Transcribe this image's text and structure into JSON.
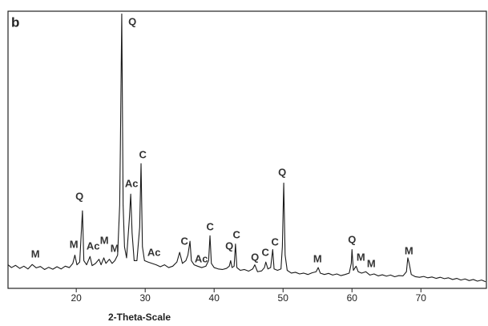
{
  "chart_data": {
    "type": "line",
    "panel_label": "b",
    "xlabel": "2-Theta-Scale",
    "color": "#1a1a1a",
    "xlim": [
      10.1,
      79.5
    ],
    "ylim": [
      0,
      100
    ],
    "xticks": [
      20,
      30,
      40,
      50,
      60,
      70
    ],
    "x": [
      10.1,
      10.6,
      11.2,
      11.8,
      12.4,
      13.0,
      13.6,
      14.2,
      14.8,
      15.4,
      16.0,
      16.6,
      17.2,
      17.8,
      18.4,
      19.0,
      19.5,
      19.8,
      20.1,
      20.5,
      20.9,
      21.1,
      21.5,
      22.0,
      22.3,
      22.8,
      23.3,
      23.6,
      24.0,
      24.3,
      24.8,
      25.2,
      25.6,
      26.0,
      26.3,
      26.4,
      26.6,
      26.8,
      27.0,
      27.3,
      27.7,
      27.9,
      28.1,
      28.4,
      28.8,
      29.2,
      29.4,
      29.6,
      29.9,
      30.4,
      31.0,
      31.6,
      32.2,
      32.8,
      33.4,
      34.0,
      34.6,
      35.0,
      35.4,
      35.9,
      36.2,
      36.5,
      36.7,
      37.1,
      37.6,
      38.2,
      38.8,
      39.2,
      39.4,
      39.6,
      40.0,
      40.6,
      41.2,
      41.8,
      42.2,
      42.4,
      42.6,
      42.9,
      43.1,
      43.3,
      43.8,
      44.4,
      45.0,
      45.6,
      45.9,
      46.3,
      46.9,
      47.3,
      47.5,
      47.8,
      48.2,
      48.5,
      48.7,
      49.2,
      49.7,
      49.9,
      50.1,
      50.3,
      50.6,
      51.2,
      51.8,
      52.4,
      53.0,
      53.6,
      54.2,
      54.8,
      55.1,
      55.4,
      56.0,
      56.6,
      57.2,
      57.8,
      58.4,
      59.0,
      59.6,
      59.9,
      60.0,
      60.2,
      60.6,
      60.9,
      61.4,
      62.0,
      62.6,
      63.2,
      63.8,
      64.4,
      65.0,
      65.6,
      66.2,
      66.8,
      67.4,
      67.9,
      68.1,
      68.3,
      68.6,
      69.2,
      69.8,
      70.4,
      71.0,
      71.6,
      72.2,
      72.8,
      73.4,
      74.0,
      74.6,
      75.2,
      75.8,
      76.4,
      77.0,
      77.6,
      78.2,
      78.8,
      79.4
    ],
    "values": [
      8.5,
      7.5,
      8.3,
      7.2,
      8.0,
      7.0,
      8.6,
      7.4,
      7.9,
      6.8,
      7.6,
      6.9,
      7.8,
      7.0,
      8.0,
      7.5,
      9.0,
      12.0,
      8.5,
      9.5,
      28,
      10,
      8.5,
      11.5,
      8.2,
      9.0,
      10.5,
      8.5,
      11.0,
      9.0,
      10.5,
      9.0,
      10.0,
      12.0,
      30,
      51,
      99,
      30,
      15,
      11,
      25,
      34,
      20,
      10,
      10,
      22,
      45,
      15,
      10,
      9.5,
      9.0,
      8.5,
      7.8,
      8.5,
      7.5,
      8.0,
      9.5,
      13,
      9,
      10,
      12,
      17,
      10,
      8.5,
      8,
      7.5,
      8,
      10,
      19,
      9,
      7.5,
      7,
      6.8,
      7.2,
      8,
      10,
      7.5,
      8,
      16,
      7.5,
      6.5,
      6.8,
      6.2,
      7.0,
      8.5,
      6.0,
      6.3,
      7.5,
      9.5,
      7,
      7.5,
      14,
      7,
      6.5,
      7,
      15,
      38,
      12,
      6.5,
      5.5,
      5.8,
      5.2,
      5.5,
      5.0,
      5.6,
      6.0,
      7.5,
      5.5,
      5.0,
      5.4,
      4.8,
      5.2,
      4.6,
      5.0,
      5.5,
      9,
      14,
      6.5,
      8,
      6,
      5.5,
      6,
      4.8,
      5.2,
      4.5,
      4.9,
      4.4,
      4.8,
      4.2,
      4.6,
      4.5,
      6,
      11,
      9,
      5,
      4.2,
      4.0,
      4.3,
      3.8,
      4.1,
      3.6,
      4.0,
      3.5,
      3.8,
      3.2,
      3.6,
      3.0,
      3.4,
      2.8,
      3.2,
      2.6,
      3.0,
      2.4
    ],
    "annotations": [
      {
        "text": "M",
        "x": 14.07,
        "y": 12.1
      },
      {
        "text": "Q",
        "x": 20.47,
        "y": 32.9
      },
      {
        "text": "M",
        "x": 19.65,
        "y": 15.6
      },
      {
        "text": "Ac",
        "x": 22.44,
        "y": 15.0
      },
      {
        "text": "M",
        "x": 24.07,
        "y": 17.1
      },
      {
        "text": "M",
        "x": 25.58,
        "y": 14.2
      },
      {
        "text": "Ac",
        "x": 28.02,
        "y": 37.6
      },
      {
        "text": "C",
        "x": 29.65,
        "y": 48.0
      },
      {
        "text": "Q",
        "x": 28.14,
        "y": 96.0
      },
      {
        "text": "Ac",
        "x": 31.28,
        "y": 12.7
      },
      {
        "text": "C",
        "x": 35.7,
        "y": 16.8
      },
      {
        "text": "Ac",
        "x": 38.14,
        "y": 10.4
      },
      {
        "text": "C",
        "x": 39.42,
        "y": 22.0
      },
      {
        "text": "Q",
        "x": 42.2,
        "y": 15.0
      },
      {
        "text": "C",
        "x": 43.26,
        "y": 19.1
      },
      {
        "text": "Q",
        "x": 45.93,
        "y": 11.0
      },
      {
        "text": "C",
        "x": 47.44,
        "y": 12.7
      },
      {
        "text": "C",
        "x": 48.84,
        "y": 16.5
      },
      {
        "text": "Q",
        "x": 49.88,
        "y": 41.6
      },
      {
        "text": "M",
        "x": 55.0,
        "y": 10.4
      },
      {
        "text": "Q",
        "x": 60.0,
        "y": 17.3
      },
      {
        "text": "M",
        "x": 61.28,
        "y": 11.0
      },
      {
        "text": "M",
        "x": 62.79,
        "y": 8.7
      },
      {
        "text": "M",
        "x": 68.26,
        "y": 13.3
      }
    ]
  }
}
